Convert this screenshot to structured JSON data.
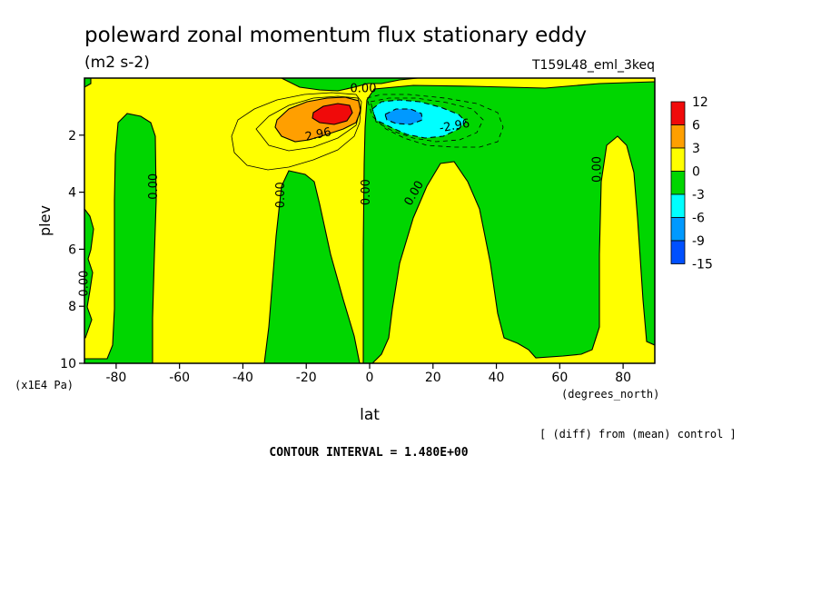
{
  "header": {
    "title": "poleward zonal momentum flux stationary eddy",
    "units": "(m2 s-2)",
    "run_id": "T159L48_eml_3keq"
  },
  "footer": {
    "diff_note": "[ (diff) from (mean) control ]",
    "contour_interval": "CONTOUR INTERVAL = 1.480E+00"
  },
  "colors": {
    "red": "#f00a0a",
    "orange": "#ff9f00",
    "yellow": "#ffff00",
    "green": "#00d600",
    "cyan": "#00ffff",
    "sky": "#0099ff",
    "blue": "#0050ff"
  },
  "chart_data": {
    "type": "heatmap",
    "title": "poleward zonal momentum flux stationary eddy",
    "xlabel": "lat",
    "xunits": "(degrees_north)",
    "ylabel": "plev",
    "yunits": "(x1E4 Pa)",
    "xlim": [
      -90,
      90
    ],
    "ylim": [
      10,
      0
    ],
    "xticks": [
      -80,
      -60,
      -40,
      -20,
      0,
      20,
      40,
      60,
      80
    ],
    "yticks": [
      2,
      4,
      6,
      8,
      10
    ],
    "colorbar": {
      "levels": [
        "12",
        "6",
        "3",
        "0",
        "-3",
        "-6",
        "-9",
        "-15"
      ],
      "colors": [
        "#f00a0a",
        "#ff9f00",
        "#ffff00",
        "#00d600",
        "#00ffff",
        "#0099ff",
        "#0050ff"
      ]
    },
    "contour_labels": [
      {
        "text": "0.00",
        "lat": -89,
        "plev": 7.2
      },
      {
        "text": "0.00",
        "lat": -67,
        "plev": 3.8
      },
      {
        "text": "0.00",
        "lat": -27,
        "plev": 4.1
      },
      {
        "text": "0.00",
        "lat": 0,
        "plev": 4.0
      },
      {
        "text": "0.00",
        "lat": 15,
        "plev": 4.1
      },
      {
        "text": "0.00",
        "lat": 73,
        "plev": 3.2
      },
      {
        "text": "0.00",
        "lat": -2,
        "plev": 0.5
      },
      {
        "text": "2.96",
        "lat": -16,
        "plev": 2.1
      },
      {
        "text": "-2.96",
        "lat": 27,
        "plev": 1.8
      }
    ],
    "extrema": [
      {
        "sign": "positive",
        "lat": -13,
        "plev": 1.4,
        "max_level": "6 to 12"
      },
      {
        "sign": "negative",
        "lat": 10,
        "plev": 1.4,
        "min_level": "-6 to -9"
      }
    ],
    "contour_interval": 1.48
  }
}
